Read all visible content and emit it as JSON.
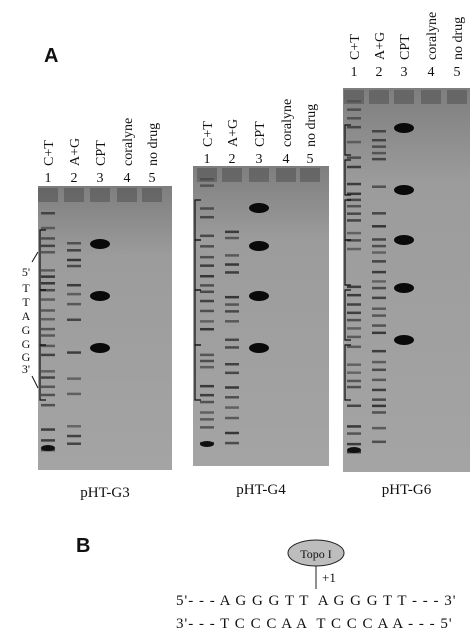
{
  "panel_a": {
    "label": "A",
    "gels": [
      {
        "name": "pHT-G3",
        "lanes": [
          "C+T",
          "A+G",
          "CPT",
          "coralyne",
          "no drug"
        ],
        "numbers": [
          "1",
          "2",
          "3",
          "4",
          "5"
        ]
      },
      {
        "name": "pHT-G4",
        "lanes": [
          "C+T",
          "A+G",
          "CPT",
          "coralyne",
          "no drug"
        ],
        "numbers": [
          "1",
          "2",
          "3",
          "4",
          "5"
        ]
      },
      {
        "name": "pHT-G6",
        "lanes": [
          "C+T",
          "A+G",
          "CPT",
          "coralyne",
          "no drug"
        ],
        "numbers": [
          "1",
          "2",
          "3",
          "4",
          "5"
        ]
      }
    ],
    "sequence_labels": [
      "5'",
      "T",
      "T",
      "A",
      "G",
      "G",
      "G",
      "3'"
    ]
  },
  "panel_b": {
    "label": "B",
    "enzyme": "Topo I",
    "site": "+1",
    "top_strand": "5'- - - A G G G T T  A G G G T T - - - 3'",
    "bottom_strand": "3'- - - T C C C A A  T C C C A A - - - 5'"
  }
}
